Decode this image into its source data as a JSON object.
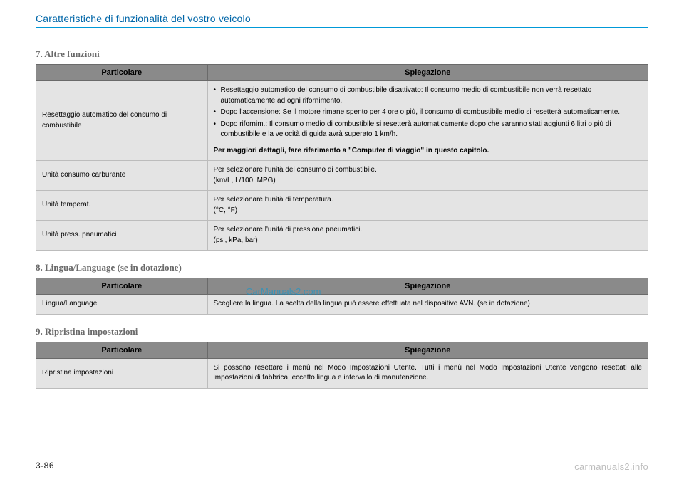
{
  "header": {
    "title": "Caratteristiche di funzionalità del vostro veicolo"
  },
  "watermark": "CarManuals2.com",
  "page_num": "3-86",
  "footer_link": "carmanuals2.info",
  "sections": {
    "s7": {
      "title": "7. Altre funzioni",
      "col_left": "Particolare",
      "col_right": "Spiegazione",
      "rows": {
        "r0": {
          "left": "Resettaggio automatico del consumo di combustibile",
          "bullets": {
            "b0": "Resettaggio automatico del consumo di combustibile disattivato: Il consumo medio di combustibile non verrà resettato automaticamente ad ogni rifornimento.",
            "b1": "Dopo l'accensione: Se il motore rimane spento per 4 ore o più, il consumo di combustibile medio si resetterà automaticamente.",
            "b2": "Dopo rifornim.: Il consumo medio di combustibile si resetterà automaticamente dopo che saranno stati aggiunti 6 litri o più di combustibile e la velocità di guida avrà superato 1 km/h."
          },
          "note": "Per maggiori dettagli, fare riferimento a \"Computer di viaggio\" in questo capitolo."
        },
        "r1": {
          "left": "Unità consumo carburante",
          "right": "Per selezionare l'unità del consumo di combustibile.\n(km/L, L/100, MPG)"
        },
        "r2": {
          "left": "Unità temperat.",
          "right": "Per selezionare l'unità di temperatura.\n(°C, °F)"
        },
        "r3": {
          "left": "Unità press. pneumatici",
          "right": "Per selezionare l'unità di pressione pneumatici.\n(psi, kPa, bar)"
        }
      }
    },
    "s8": {
      "title": "8. Lingua/Language (se in dotazione)",
      "col_left": "Particolare",
      "col_right": "Spiegazione",
      "rows": {
        "r0": {
          "left": "Lingua/Language",
          "right": "Scegliere la lingua. La scelta della lingua può essere effettuata nel dispositivo AVN. (se in dotazione)"
        }
      }
    },
    "s9": {
      "title": "9. Ripristina impostazioni",
      "col_left": "Particolare",
      "col_right": "Spiegazione",
      "rows": {
        "r0": {
          "left": "Ripristina impostazioni",
          "right": "Si possono resettare i menù nel Modo Impostazioni Utente. Tutti i menù nel Modo Impostazioni Utente vengono resettati alle impostazioni di fabbrica, eccetto lingua e intervallo di manutenzione."
        }
      }
    }
  },
  "colors": {
    "accent": "#0099d8",
    "header_text": "#0066a8",
    "section_title": "#6a6a6a",
    "th_bg": "#8a8a8a",
    "td_bg": "#e4e4e4",
    "border": "#bcbcbc",
    "footer_grey": "#bdbdbd"
  }
}
